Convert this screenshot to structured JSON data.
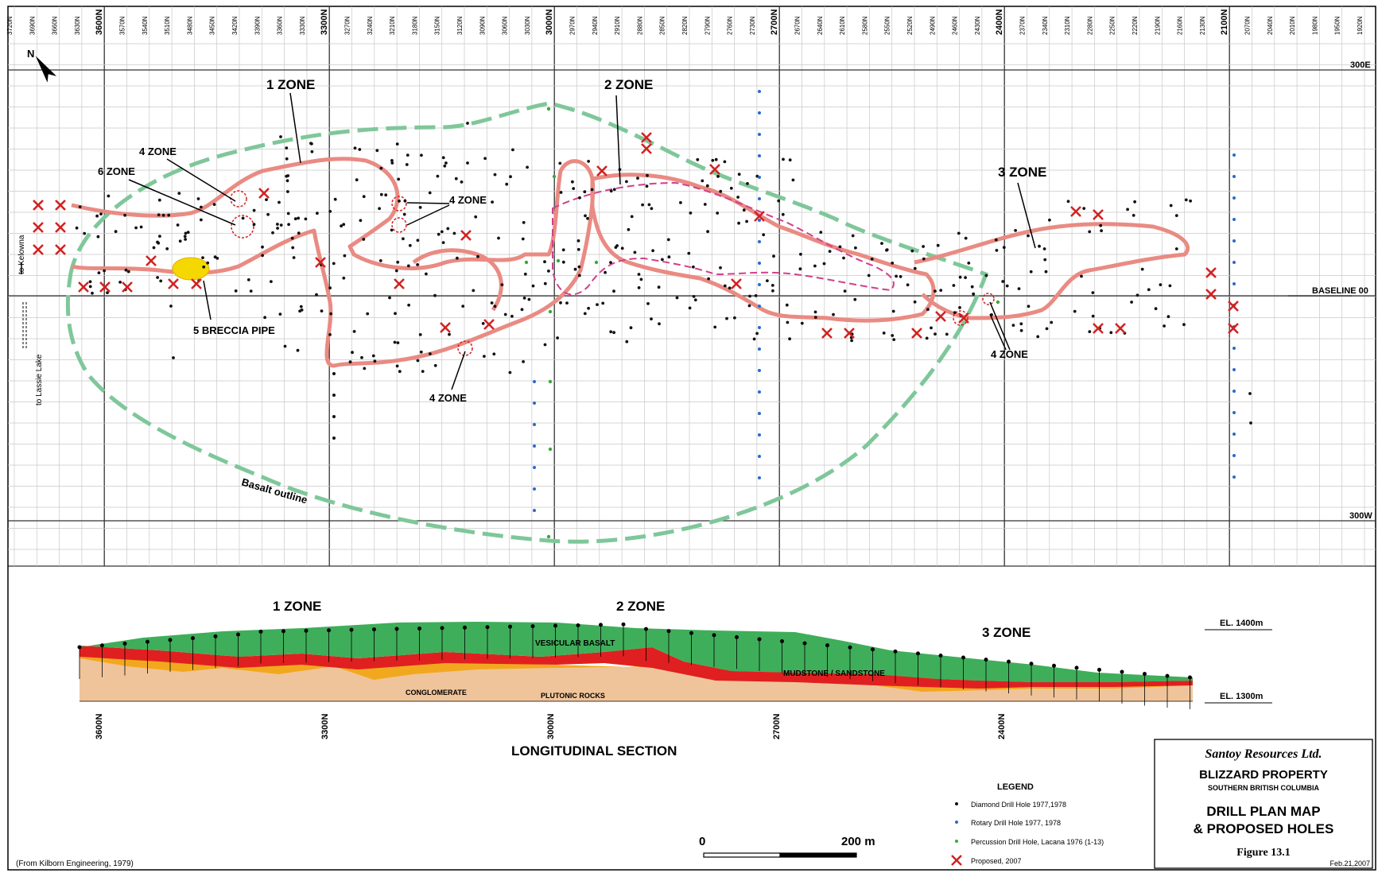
{
  "grid_labels_n": [
    "3720N",
    "3690N",
    "3660N",
    "3630N",
    "3600N",
    "3570N",
    "3540N",
    "3510N",
    "3480N",
    "3450N",
    "3420N",
    "3390N",
    "3360N",
    "3330N",
    "3300N",
    "3270N",
    "3240N",
    "3210N",
    "3180N",
    "3150N",
    "3120N",
    "3090N",
    "3060N",
    "3030N",
    "3000N",
    "2970N",
    "2940N",
    "2910N",
    "2880N",
    "2850N",
    "2820N",
    "2790N",
    "2760N",
    "2730N",
    "2700N",
    "2670N",
    "2640N",
    "2610N",
    "2580N",
    "2550N",
    "2520N",
    "2490N",
    "2460N",
    "2430N",
    "2400N",
    "2370N",
    "2340N",
    "2310N",
    "2280N",
    "2250N",
    "2220N",
    "2190N",
    "2160N",
    "2130N",
    "2100N",
    "2070N",
    "2040N",
    "2010N",
    "1980N",
    "1950N",
    "1920N"
  ],
  "east_labels": {
    "top": "300E",
    "baseline": "BASELINE 00",
    "bottom": "300W"
  },
  "zones": {
    "z1": "1 ZONE",
    "z2": "2 ZONE",
    "z3": "3 ZONE",
    "z4": "4 ZONE",
    "z6": "6 ZONE",
    "z5": "5 BRECCIA PIPE"
  },
  "basalt_outline": "Basalt outline",
  "roads": {
    "kelowna": "to Kelowna",
    "lassie": "to Lassie Lake"
  },
  "section": {
    "title": "LONGITUDINAL SECTION",
    "el_high": "EL. 1400m",
    "el_low": "EL. 1300m",
    "vesicular": "VESICULAR BASALT",
    "mudstone": "MUDSTONE / SANDSTONE",
    "conglomerate": "CONGLOMERATE",
    "plutonic": "PLUTONIC ROCKS",
    "x_labels": [
      "3600N",
      "3300N",
      "3000N",
      "2700N",
      "2400N"
    ]
  },
  "legend": {
    "title": "LEGEND",
    "items": [
      {
        "label": "Diamond Drill Hole 1977,1978",
        "color": "#111111",
        "symbol": "dot"
      },
      {
        "label": "Rotary Drill Hole 1977, 1978",
        "color": "#2a6ac8",
        "symbol": "dot"
      },
      {
        "label": "Percussion Drill Hole, Lacana 1976 (1-13)",
        "color": "#3aa83a",
        "symbol": "dot"
      },
      {
        "label": "Proposed, 2007",
        "color": "#d22222",
        "symbol": "cross"
      }
    ]
  },
  "scale": {
    "zero": "0",
    "max": "200 m"
  },
  "title_block": {
    "company": "Santoy Resources Ltd.",
    "property": "BLIZZARD PROPERTY",
    "region": "SOUTHERN BRITISH COLUMBIA",
    "map_title_1": "DRILL PLAN MAP",
    "map_title_2": "& PROPOSED HOLES",
    "figure": "Figure 13.1",
    "date": "Feb.21,2007"
  },
  "source": "(From Kilborn Engineering, 1979)",
  "north": "N",
  "colors": {
    "zone_fill": "#e98b83",
    "basalt": "#7fc79a",
    "breccia": "#f5d800",
    "proposed": "#d22222",
    "rotary": "#2a6ac8",
    "percussion": "#3aa83a",
    "section_green": "#3fae5a",
    "section_red": "#e02020",
    "section_tan": "#f0c49a",
    "section_orange": "#f2a81e"
  }
}
